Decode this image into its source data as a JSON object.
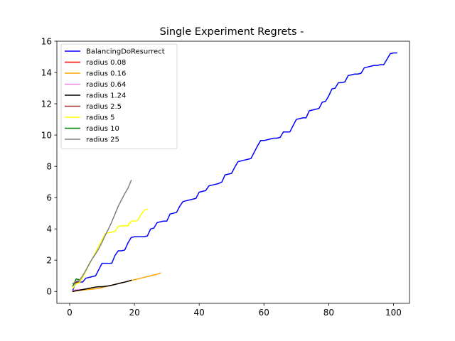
{
  "chart_data": {
    "type": "line",
    "title": "Single Experiment Regrets -",
    "xlabel": "",
    "ylabel": "",
    "xlim": [
      -3.95,
      104.95
    ],
    "ylim": [
      -0.76,
      16.0
    ],
    "xticks": [
      0,
      20,
      40,
      60,
      80,
      100
    ],
    "yticks": [
      0,
      2,
      4,
      6,
      8,
      10,
      12,
      14,
      16
    ],
    "grid": false,
    "legend_position": "top-left",
    "series": [
      {
        "name": "BalancingDoResurrect",
        "color": "#0000ff",
        "points": [
          [
            1,
            0.1
          ],
          [
            2,
            0.6
          ],
          [
            3,
            0.6
          ],
          [
            4,
            0.6
          ],
          [
            5,
            0.85
          ],
          [
            6,
            0.9
          ],
          [
            7,
            0.95
          ],
          [
            8,
            1.0
          ],
          [
            9,
            1.4
          ],
          [
            10,
            1.8
          ],
          [
            11,
            1.8
          ],
          [
            12,
            1.8
          ],
          [
            13,
            1.8
          ],
          [
            14,
            2.3
          ],
          [
            15,
            2.6
          ],
          [
            16,
            2.6
          ],
          [
            17,
            2.65
          ],
          [
            18,
            3.1
          ],
          [
            19,
            3.45
          ],
          [
            20,
            3.5
          ],
          [
            21,
            3.5
          ],
          [
            22,
            3.5
          ],
          [
            23,
            3.5
          ],
          [
            24,
            3.55
          ],
          [
            25,
            4.0
          ],
          [
            26,
            4.05
          ],
          [
            27,
            4.4
          ],
          [
            28,
            4.45
          ],
          [
            29,
            4.5
          ],
          [
            30,
            4.5
          ],
          [
            31,
            4.95
          ],
          [
            32,
            5.0
          ],
          [
            33,
            5.05
          ],
          [
            34,
            5.45
          ],
          [
            35,
            5.75
          ],
          [
            36,
            5.8
          ],
          [
            37,
            5.85
          ],
          [
            38,
            5.9
          ],
          [
            39,
            5.95
          ],
          [
            40,
            6.35
          ],
          [
            41,
            6.4
          ],
          [
            42,
            6.45
          ],
          [
            43,
            6.75
          ],
          [
            44,
            6.8
          ],
          [
            45,
            6.85
          ],
          [
            46,
            6.9
          ],
          [
            47,
            7.0
          ],
          [
            48,
            7.45
          ],
          [
            49,
            7.5
          ],
          [
            50,
            7.55
          ],
          [
            51,
            7.95
          ],
          [
            52,
            8.3
          ],
          [
            53,
            8.35
          ],
          [
            54,
            8.4
          ],
          [
            55,
            8.45
          ],
          [
            56,
            8.5
          ],
          [
            57,
            8.9
          ],
          [
            58,
            9.3
          ],
          [
            59,
            9.65
          ],
          [
            60,
            9.65
          ],
          [
            61,
            9.7
          ],
          [
            62,
            9.75
          ],
          [
            63,
            9.8
          ],
          [
            64,
            9.8
          ],
          [
            65,
            9.85
          ],
          [
            66,
            10.2
          ],
          [
            67,
            10.2
          ],
          [
            68,
            10.2
          ],
          [
            69,
            10.6
          ],
          [
            70,
            11.0
          ],
          [
            71,
            11.05
          ],
          [
            72,
            11.1
          ],
          [
            73,
            11.1
          ],
          [
            74,
            11.55
          ],
          [
            75,
            11.6
          ],
          [
            76,
            11.65
          ],
          [
            77,
            11.7
          ],
          [
            78,
            12.1
          ],
          [
            79,
            12.15
          ],
          [
            80,
            12.5
          ],
          [
            81,
            12.95
          ],
          [
            82,
            13.0
          ],
          [
            83,
            13.35
          ],
          [
            84,
            13.35
          ],
          [
            85,
            13.4
          ],
          [
            86,
            13.8
          ],
          [
            87,
            13.85
          ],
          [
            88,
            13.9
          ],
          [
            89,
            13.9
          ],
          [
            90,
            13.95
          ],
          [
            91,
            14.3
          ],
          [
            92,
            14.35
          ],
          [
            93,
            14.4
          ],
          [
            94,
            14.45
          ],
          [
            95,
            14.45
          ],
          [
            96,
            14.5
          ],
          [
            97,
            14.5
          ],
          [
            98,
            14.85
          ],
          [
            99,
            15.2
          ],
          [
            100,
            15.25
          ],
          [
            101,
            15.25
          ]
        ]
      },
      {
        "name": "radius 0.08",
        "color": "#ff0000",
        "points": [
          [
            1,
            0.05
          ],
          [
            2,
            0.1
          ],
          [
            3,
            0.1
          ],
          [
            4,
            0.12
          ],
          [
            5,
            0.15
          ]
        ]
      },
      {
        "name": "radius 0.16",
        "color": "#ffa500",
        "points": [
          [
            1,
            0.0
          ],
          [
            2,
            0.03
          ],
          [
            3,
            0.06
          ],
          [
            4,
            0.09
          ],
          [
            5,
            0.11
          ],
          [
            6,
            0.13
          ],
          [
            7,
            0.15
          ],
          [
            8,
            0.17
          ],
          [
            9,
            0.2
          ],
          [
            10,
            0.25
          ],
          [
            11,
            0.3
          ],
          [
            12,
            0.35
          ],
          [
            13,
            0.4
          ],
          [
            14,
            0.45
          ],
          [
            15,
            0.5
          ],
          [
            16,
            0.55
          ],
          [
            17,
            0.6
          ],
          [
            18,
            0.65
          ],
          [
            19,
            0.7
          ],
          [
            20,
            0.75
          ],
          [
            21,
            0.8
          ],
          [
            22,
            0.85
          ],
          [
            23,
            0.9
          ],
          [
            24,
            0.95
          ],
          [
            25,
            1.0
          ],
          [
            26,
            1.05
          ],
          [
            27,
            1.1
          ],
          [
            28,
            1.18
          ]
        ]
      },
      {
        "name": "radius 0.64",
        "color": "#ee82ee",
        "points": [
          [
            1,
            0.05
          ],
          [
            2,
            0.1
          ],
          [
            3,
            0.12
          ]
        ]
      },
      {
        "name": "radius 1.24",
        "color": "#000000",
        "points": [
          [
            1,
            0.0
          ],
          [
            2,
            0.05
          ],
          [
            3,
            0.08
          ],
          [
            4,
            0.12
          ],
          [
            5,
            0.16
          ],
          [
            6,
            0.2
          ],
          [
            7,
            0.24
          ],
          [
            8,
            0.28
          ],
          [
            9,
            0.3
          ],
          [
            10,
            0.3
          ],
          [
            11,
            0.33
          ],
          [
            12,
            0.36
          ],
          [
            13,
            0.4
          ],
          [
            14,
            0.45
          ],
          [
            15,
            0.5
          ],
          [
            16,
            0.55
          ],
          [
            17,
            0.6
          ],
          [
            18,
            0.65
          ],
          [
            19,
            0.72
          ]
        ]
      },
      {
        "name": "radius 2.5",
        "color": "#a52a2a",
        "points": [
          [
            1,
            0.5
          ],
          [
            2,
            0.55
          ],
          [
            3,
            0.6
          ]
        ]
      },
      {
        "name": "radius 5",
        "color": "#ffff00",
        "points": [
          [
            1,
            0.2
          ],
          [
            2,
            0.5
          ],
          [
            3,
            0.55
          ],
          [
            4,
            0.9
          ],
          [
            5,
            1.3
          ],
          [
            6,
            1.7
          ],
          [
            7,
            2.1
          ],
          [
            8,
            2.5
          ],
          [
            9,
            2.9
          ],
          [
            10,
            3.3
          ],
          [
            11,
            3.7
          ],
          [
            12,
            3.75
          ],
          [
            13,
            3.8
          ],
          [
            14,
            3.85
          ],
          [
            15,
            4.15
          ],
          [
            16,
            4.2
          ],
          [
            17,
            4.2
          ],
          [
            18,
            4.2
          ],
          [
            19,
            4.5
          ],
          [
            20,
            4.5
          ],
          [
            21,
            4.55
          ],
          [
            22,
            4.9
          ],
          [
            23,
            5.2
          ],
          [
            24,
            5.25
          ]
        ]
      },
      {
        "name": "radius 10",
        "color": "#008000",
        "points": [
          [
            1,
            0.35
          ],
          [
            2,
            0.8
          ],
          [
            3,
            0.75
          ]
        ]
      },
      {
        "name": "radius 25",
        "color": "#808080",
        "points": [
          [
            1,
            0.5
          ],
          [
            2,
            0.65
          ],
          [
            3,
            0.7
          ],
          [
            4,
            1.0
          ],
          [
            5,
            1.35
          ],
          [
            6,
            1.75
          ],
          [
            7,
            2.1
          ],
          [
            8,
            2.4
          ],
          [
            9,
            2.75
          ],
          [
            10,
            3.15
          ],
          [
            11,
            3.6
          ],
          [
            12,
            4.0
          ],
          [
            13,
            4.45
          ],
          [
            14,
            4.95
          ],
          [
            15,
            5.45
          ],
          [
            16,
            5.85
          ],
          [
            17,
            6.25
          ],
          [
            18,
            6.6
          ],
          [
            19,
            7.1
          ]
        ]
      }
    ]
  }
}
